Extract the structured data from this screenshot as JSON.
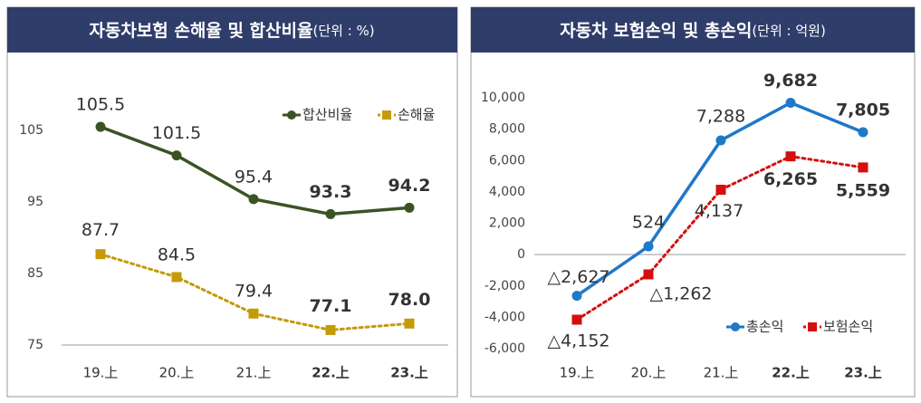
{
  "chart_data": [
    {
      "type": "line",
      "title": "자동차보험 손해율 및 합산비율",
      "subtitle": "(단위 : %)",
      "categories": [
        "19.上",
        "20.上",
        "21.上",
        "22.上",
        "23.上"
      ],
      "series": [
        {
          "name": "합산비율",
          "color": "#3b5323",
          "marker": "circle",
          "line_style": "solid",
          "values": [
            105.5,
            101.5,
            95.4,
            93.3,
            94.2
          ],
          "value_labels": [
            "105.5",
            "101.5",
            "95.4",
            "93.3",
            "94.2"
          ]
        },
        {
          "name": "손해율",
          "color": "#c49a0a",
          "marker": "square",
          "line_style": "dotted",
          "values": [
            87.7,
            84.5,
            79.4,
            77.1,
            78.0
          ],
          "value_labels": [
            "87.7",
            "84.5",
            "79.4",
            "77.1",
            "78.0"
          ]
        }
      ],
      "ylim": [
        75,
        115
      ],
      "yticks": [
        75,
        85,
        95,
        105
      ],
      "legend": "top-right"
    },
    {
      "type": "line",
      "title": "자동차 보험손익 및 총손익",
      "subtitle": "(단위 : 억원)",
      "categories": [
        "19.上",
        "20.上",
        "21.上",
        "22.上",
        "23.上"
      ],
      "series": [
        {
          "name": "총손익",
          "color": "#1f78c8",
          "marker": "circle",
          "line_style": "solid",
          "values": [
            -2627,
            524,
            7288,
            9682,
            7805
          ],
          "value_labels": [
            "△2,627",
            "524",
            "7,288",
            "9,682",
            "7,805"
          ]
        },
        {
          "name": "보험손익",
          "color": "#d40f0f",
          "marker": "square",
          "line_style": "dotted",
          "values": [
            -4152,
            -1262,
            4137,
            6265,
            5559
          ],
          "value_labels": [
            "△4,152",
            "△1,262",
            "4,137",
            "6,265",
            "5,559"
          ]
        }
      ],
      "ylim": [
        -6000,
        10000
      ],
      "yticks": [
        {
          "value": -6000,
          "label": "-6,000"
        },
        {
          "value": -4000,
          "label": "-4,000"
        },
        {
          "value": -2000,
          "label": "-2,000"
        },
        0,
        {
          "value": 2000,
          "label": "2,000"
        },
        {
          "value": 4000,
          "label": "4,000"
        },
        {
          "value": 6000,
          "label": "6,000"
        },
        {
          "value": 8000,
          "label": "8,000"
        },
        {
          "value": 10000,
          "label": "10,000"
        }
      ],
      "legend": "bottom-right"
    }
  ]
}
